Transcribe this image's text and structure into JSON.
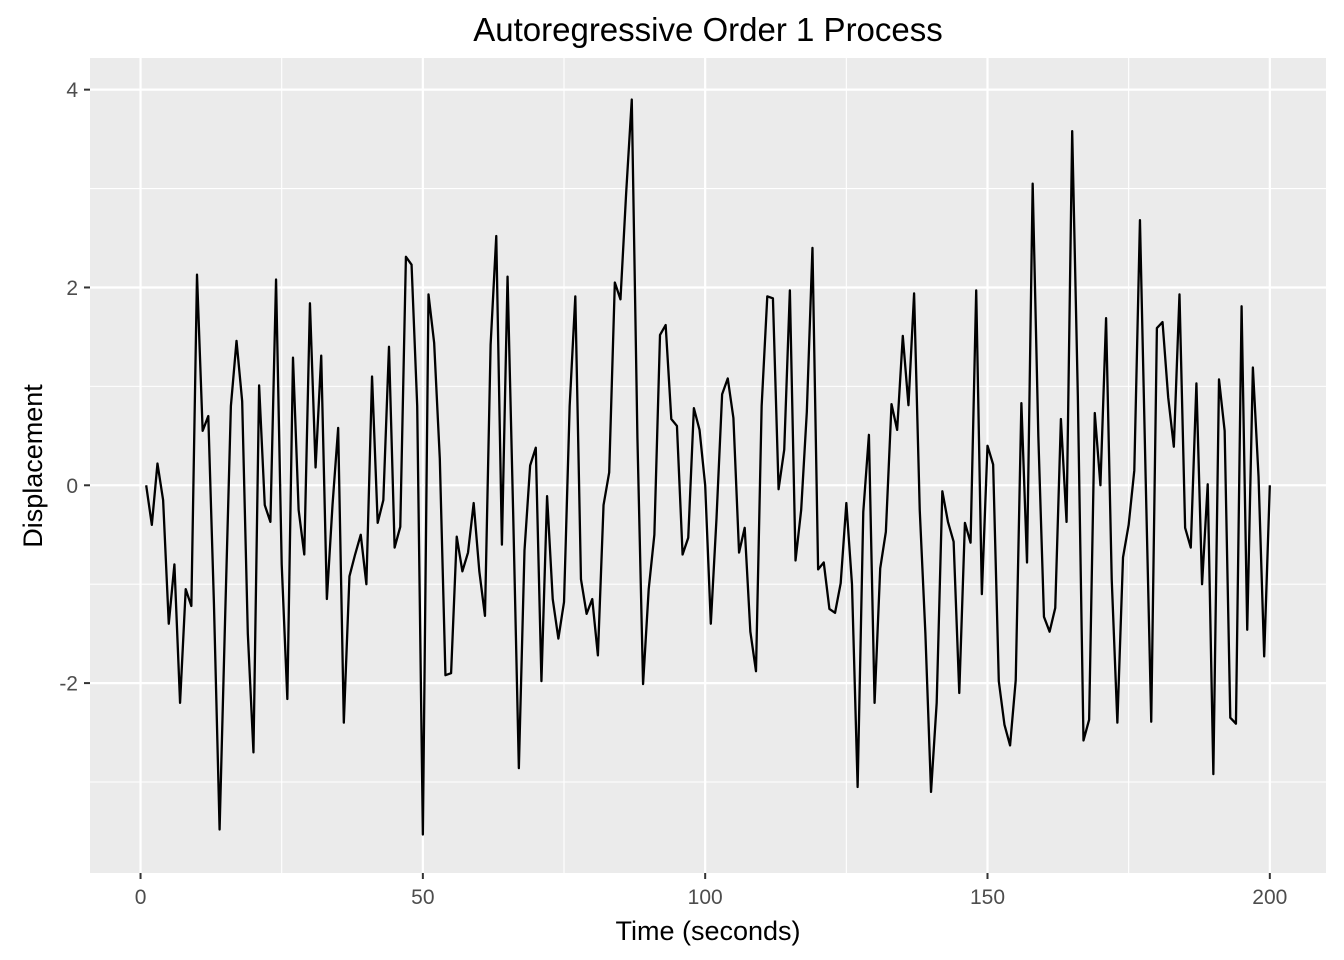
{
  "chart_data": {
    "type": "line",
    "title": "Autoregressive Order 1 Process",
    "xlabel": "Time (seconds)",
    "ylabel": "Displacement",
    "xlim": [
      -8.95,
      209.95
    ],
    "ylim": [
      -3.92,
      4.32
    ],
    "x_ticks": [
      0,
      50,
      100,
      150,
      200
    ],
    "x_tick_labels": [
      "0",
      "50",
      "100",
      "150",
      "200"
    ],
    "y_ticks": [
      -2,
      0,
      2,
      4
    ],
    "y_tick_labels": [
      "-2",
      "0",
      "2",
      "4"
    ],
    "x_minor": [
      25,
      75,
      125,
      175
    ],
    "y_minor": [
      -3,
      -1,
      1,
      3
    ],
    "grid": true,
    "legend": "none",
    "colors": {
      "panel": "#ebebeb",
      "grid": "#ffffff",
      "line": "#000000",
      "tick_text": "#4d4d4d"
    },
    "series": [
      {
        "x_start": 1,
        "values": [
          0.0,
          -0.4,
          0.22,
          -0.15,
          -1.4,
          -0.8,
          -2.2,
          -1.05,
          -1.22,
          2.13,
          0.55,
          0.7,
          -1.2,
          -3.48,
          -1.3,
          0.8,
          1.46,
          0.85,
          -1.5,
          -2.7,
          1.01,
          -0.2,
          -0.37,
          2.08,
          -0.8,
          -2.16,
          1.29,
          -0.25,
          -0.7,
          1.84,
          0.18,
          1.31,
          -1.15,
          -0.2,
          0.58,
          -2.4,
          -0.92,
          -0.7,
          -0.5,
          -1.0,
          1.1,
          -0.38,
          -0.15,
          1.4,
          -0.63,
          -0.42,
          2.31,
          2.23,
          0.8,
          -3.53,
          1.93,
          1.44,
          0.27,
          -1.92,
          -1.9,
          -0.52,
          -0.87,
          -0.68,
          -0.18,
          -0.87,
          -1.32,
          1.42,
          2.52,
          -0.6,
          2.11,
          -0.3,
          -2.86,
          -0.66,
          0.2,
          0.38,
          -1.98,
          -0.11,
          -1.15,
          -1.55,
          -1.18,
          0.8,
          1.91,
          -0.95,
          -1.3,
          -1.15,
          -1.72,
          -0.2,
          0.13,
          2.05,
          1.88,
          2.95,
          3.9,
          0.48,
          -2.01,
          -1.05,
          -0.5,
          1.52,
          1.62,
          0.67,
          0.6,
          -0.7,
          -0.53,
          0.78,
          0.56,
          0.0,
          -1.4,
          -0.34,
          0.92,
          1.08,
          0.68,
          -0.68,
          -0.43,
          -1.48,
          -1.88,
          0.8,
          1.91,
          1.89,
          -0.04,
          0.36,
          1.97,
          -0.76,
          -0.25,
          0.74,
          2.4,
          -0.85,
          -0.78,
          -1.25,
          -1.29,
          -0.99,
          -0.18,
          -1.0,
          -3.05,
          -0.27,
          0.51,
          -2.2,
          -0.84,
          -0.47,
          0.82,
          0.56,
          1.51,
          0.81,
          1.94,
          -0.25,
          -1.5,
          -3.1,
          -2.2,
          -0.06,
          -0.37,
          -0.57,
          -2.1,
          -0.38,
          -0.58,
          1.97,
          -1.1,
          0.4,
          0.21,
          -1.98,
          -2.42,
          -2.63,
          -1.97,
          0.83,
          -0.78,
          3.05,
          0.5,
          -1.33,
          -1.48,
          -1.24,
          0.67,
          -0.37,
          3.58,
          0.9,
          -2.58,
          -2.37,
          0.73,
          0.0,
          1.69,
          -0.95,
          -2.4,
          -0.73,
          -0.4,
          0.15,
          2.68,
          0.1,
          -2.39,
          1.59,
          1.65,
          0.89,
          0.39,
          1.93,
          -0.43,
          -0.63,
          1.03,
          -1.0,
          0.01,
          -2.92,
          1.07,
          0.55,
          -2.35,
          -2.41,
          1.81,
          -1.46,
          1.19,
          0.09,
          -1.73,
          0.0
        ]
      }
    ]
  }
}
